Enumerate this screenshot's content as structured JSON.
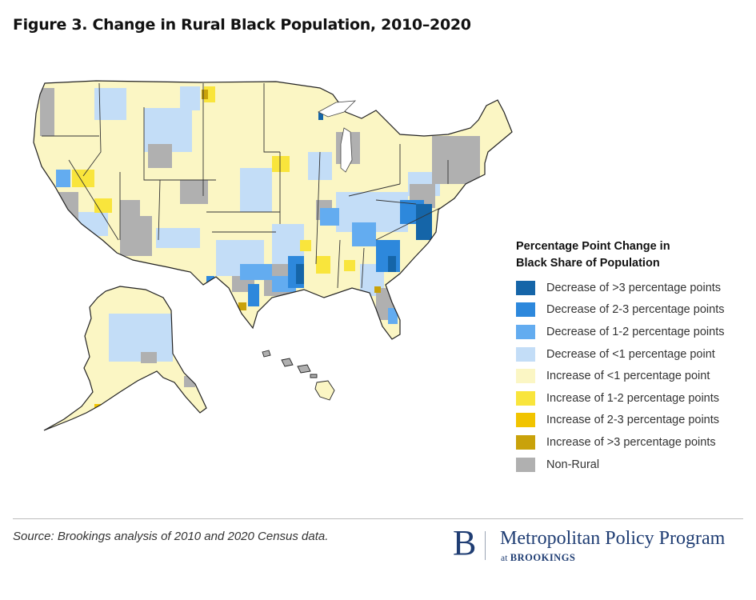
{
  "title": "Figure 3. Change in Rural Black Population, 2010–2020",
  "legend": {
    "title_line1": "Percentage Point Change in",
    "title_line2": "Black Share of Population",
    "items": [
      {
        "label": "Decrease of >3 percentage points",
        "color": "#1565a8"
      },
      {
        "label": "Decrease of 2-3 percentage points",
        "color": "#2d88dc"
      },
      {
        "label": "Decrease of 1-2 percentage points",
        "color": "#63acf0"
      },
      {
        "label": "Decrease of <1 percentage point",
        "color": "#c3ddf7"
      },
      {
        "label": "Increase of <1 percentage point",
        "color": "#fbf6c4"
      },
      {
        "label": "Increase of 1-2 percentage points",
        "color": "#f9e53c"
      },
      {
        "label": "Increase of 2-3 percentage points",
        "color": "#f1c400"
      },
      {
        "label": "Increase of >3 percentage points",
        "color": "#c9a20a"
      },
      {
        "label": "Non-Rural",
        "color": "#b0b0b0"
      }
    ]
  },
  "source": "Source: Brookings analysis of 2010 and 2020 Census data.",
  "logo": {
    "letter": "B",
    "name": "Metropolitan Policy Program",
    "at": "at",
    "org": "BROOKINGS"
  }
}
